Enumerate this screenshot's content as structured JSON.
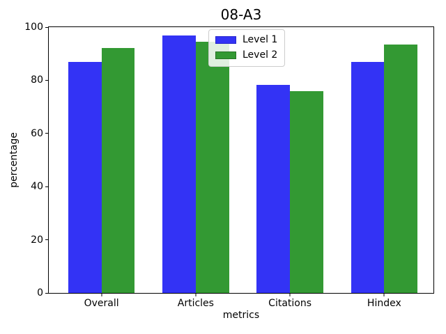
{
  "figure": {
    "background": "#ffffff",
    "text_color": "#000000",
    "spine_color": "#000000"
  },
  "chart_data": {
    "type": "bar",
    "title": "08-A3",
    "xlabel": "metrics",
    "ylabel": "percentage",
    "categories": [
      "Overall",
      "Articles",
      "Citations",
      "Hindex"
    ],
    "series": [
      {
        "name": "Level 1",
        "color": "#3333f5",
        "edge": "#2626cc",
        "values": [
          87.0,
          96.8,
          78.3,
          87.0
        ]
      },
      {
        "name": "Level 2",
        "color": "#339933",
        "edge": "#267326",
        "values": [
          92.1,
          94.6,
          75.8,
          93.5
        ]
      }
    ],
    "ylim": [
      0,
      100
    ],
    "yticks": [
      0,
      20,
      40,
      60,
      80,
      100
    ],
    "grid": false,
    "legend": {
      "position": "upper-center",
      "labels": [
        "Level 1",
        "Level 2"
      ]
    }
  }
}
